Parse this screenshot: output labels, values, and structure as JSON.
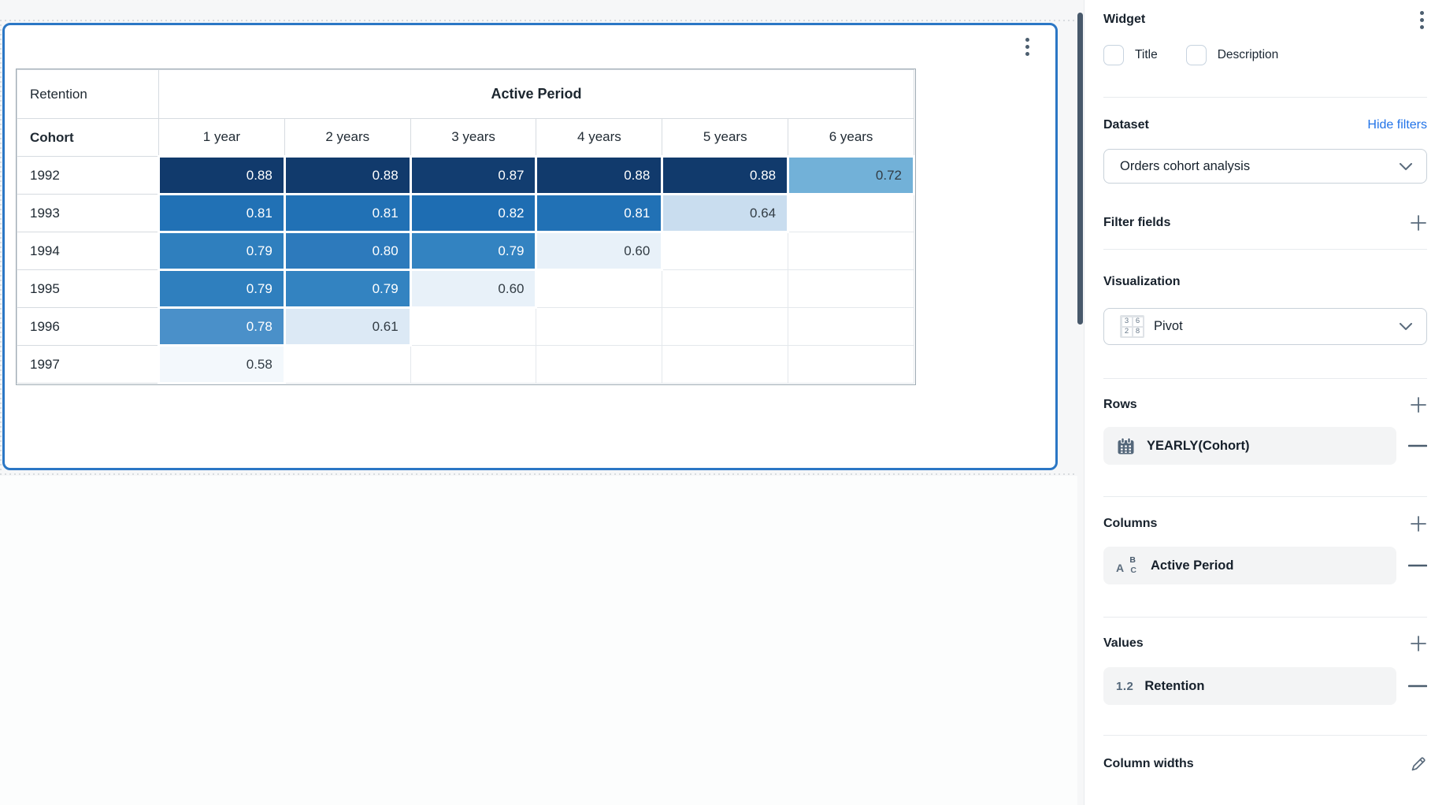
{
  "pivot": {
    "corner_label": "Retention",
    "column_group_label": "Active Period",
    "row_header": "Cohort",
    "col_headers": [
      "1 year",
      "2 years",
      "3 years",
      "4 years",
      "5 years",
      "6 years"
    ],
    "rows": [
      {
        "label": "1992",
        "cells": [
          {
            "v": "0.88",
            "bg": "#113a6c",
            "fg": "#ffffff"
          },
          {
            "v": "0.88",
            "bg": "#113a6c",
            "fg": "#ffffff"
          },
          {
            "v": "0.87",
            "bg": "#123d70",
            "fg": "#ffffff"
          },
          {
            "v": "0.88",
            "bg": "#113a6c",
            "fg": "#ffffff"
          },
          {
            "v": "0.88",
            "bg": "#113a6c",
            "fg": "#ffffff"
          },
          {
            "v": "0.72",
            "bg": "#72b1d8",
            "fg": "#323c44"
          }
        ]
      },
      {
        "label": "1993",
        "cells": [
          {
            "v": "0.81",
            "bg": "#2171b5",
            "fg": "#ffffff"
          },
          {
            "v": "0.81",
            "bg": "#2171b5",
            "fg": "#ffffff"
          },
          {
            "v": "0.82",
            "bg": "#1e6db2",
            "fg": "#ffffff"
          },
          {
            "v": "0.81",
            "bg": "#2171b5",
            "fg": "#ffffff"
          },
          {
            "v": "0.64",
            "bg": "#c9ddef",
            "fg": "#323c44"
          },
          null
        ]
      },
      {
        "label": "1994",
        "cells": [
          {
            "v": "0.79",
            "bg": "#2f7fbe",
            "fg": "#ffffff"
          },
          {
            "v": "0.80",
            "bg": "#2d7abc",
            "fg": "#ffffff"
          },
          {
            "v": "0.79",
            "bg": "#3383c1",
            "fg": "#ffffff"
          },
          {
            "v": "0.60",
            "bg": "#e8f1f9",
            "fg": "#323c44"
          },
          null,
          null
        ]
      },
      {
        "label": "1995",
        "cells": [
          {
            "v": "0.79",
            "bg": "#2f7fbe",
            "fg": "#ffffff"
          },
          {
            "v": "0.79",
            "bg": "#3383c1",
            "fg": "#ffffff"
          },
          {
            "v": "0.60",
            "bg": "#e8f1f9",
            "fg": "#323c44"
          },
          null,
          null,
          null
        ]
      },
      {
        "label": "1996",
        "cells": [
          {
            "v": "0.78",
            "bg": "#4a90c9",
            "fg": "#ffffff"
          },
          {
            "v": "0.61",
            "bg": "#dce9f5",
            "fg": "#323c44"
          },
          null,
          null,
          null,
          null
        ]
      },
      {
        "label": "1997",
        "cells": [
          {
            "v": "0.58",
            "bg": "#f3f8fc",
            "fg": "#323c44"
          },
          null,
          null,
          null,
          null,
          null
        ]
      }
    ]
  },
  "panel": {
    "title": "Widget",
    "checkboxes": [
      {
        "label": "Title",
        "checked": false
      },
      {
        "label": "Description",
        "checked": false
      }
    ],
    "dataset": {
      "heading": "Dataset",
      "link": "Hide filters",
      "selected": "Orders cohort analysis"
    },
    "filter_fields": {
      "heading": "Filter fields"
    },
    "visualization": {
      "heading": "Visualization",
      "selected": "Pivot",
      "icon_numbers": [
        "3",
        "6",
        "2",
        "8"
      ]
    },
    "rows_section": {
      "heading": "Rows",
      "items": [
        {
          "icon": "calendar-icon",
          "label": "YEARLY(Cohort)"
        }
      ]
    },
    "columns_section": {
      "heading": "Columns",
      "items": [
        {
          "icon": "abc-icon",
          "label": "Active Period"
        }
      ]
    },
    "values_section": {
      "heading": "Values",
      "items": [
        {
          "icon": "numeric-icon",
          "icon_text": "1.2",
          "label": "Retention"
        }
      ]
    },
    "column_widths": {
      "heading": "Column widths"
    }
  },
  "colors": {
    "widget_border": "#2b77c5",
    "panel_link": "#2173e8",
    "scrollbar": "#48596b",
    "heatmap_dark": "#113a6c",
    "heatmap_light": "#f3f8fc"
  },
  "chart_data": {
    "type": "heatmap",
    "title": "Retention",
    "x_axis_label": "Active Period",
    "y_axis_label": "Cohort",
    "x_categories": [
      "1 year",
      "2 years",
      "3 years",
      "4 years",
      "5 years",
      "6 years"
    ],
    "y_categories": [
      "1992",
      "1993",
      "1994",
      "1995",
      "1996",
      "1997"
    ],
    "values": [
      [
        0.88,
        0.88,
        0.87,
        0.88,
        0.88,
        0.72
      ],
      [
        0.81,
        0.81,
        0.82,
        0.81,
        0.64,
        null
      ],
      [
        0.79,
        0.8,
        0.79,
        0.6,
        null,
        null
      ],
      [
        0.79,
        0.79,
        0.6,
        null,
        null,
        null
      ],
      [
        0.78,
        0.61,
        null,
        null,
        null,
        null
      ],
      [
        0.58,
        null,
        null,
        null,
        null,
        null
      ]
    ],
    "colormap": "blues",
    "legend": "none"
  }
}
